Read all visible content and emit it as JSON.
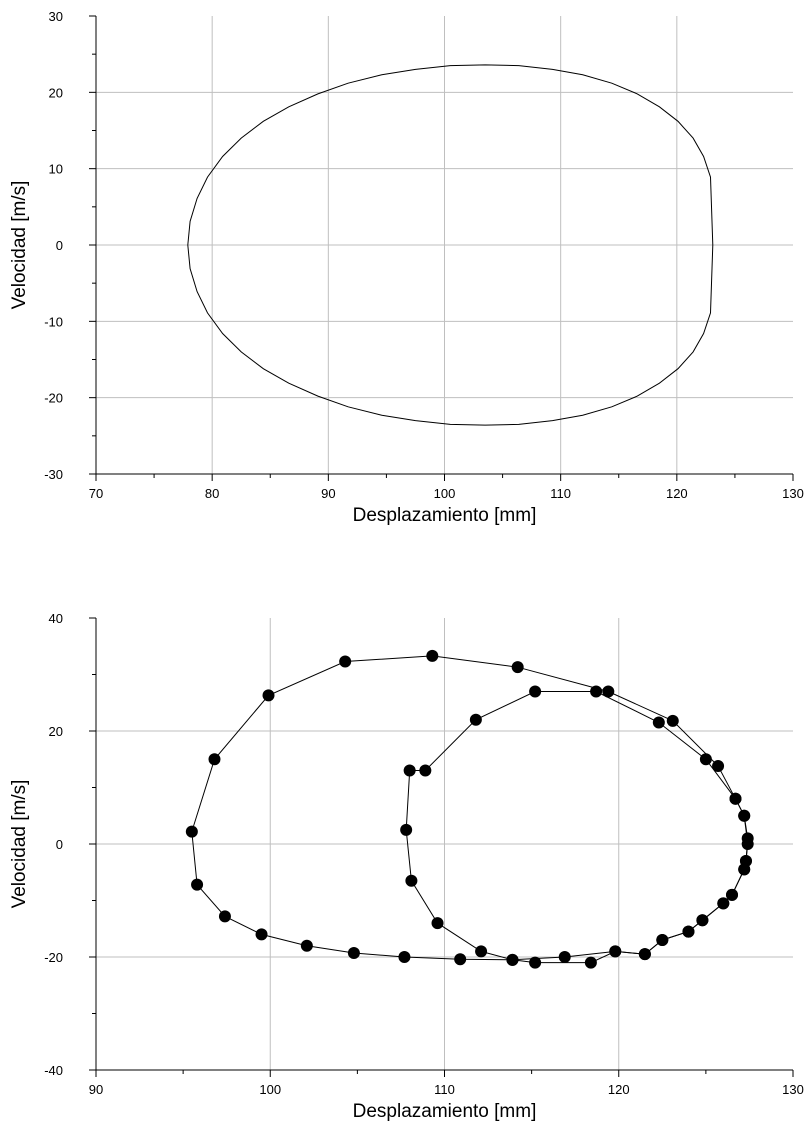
{
  "chart_data": [
    {
      "type": "line",
      "title": "",
      "xlabel": "Desplazamiento [mm]",
      "ylabel": "Velocidad [m/s]",
      "xlim": [
        70,
        130
      ],
      "ylim": [
        -30,
        30
      ],
      "xticks": [
        70,
        80,
        90,
        100,
        110,
        120,
        130
      ],
      "yticks": [
        -30,
        -20,
        -10,
        0,
        10,
        20,
        30
      ],
      "grid": true,
      "markers": false,
      "series": [
        {
          "x": [
            77.9,
            78.1,
            78.7,
            79.6,
            80.9,
            82.5,
            84.4,
            86.6,
            89.1,
            91.7,
            94.6,
            97.5,
            100.5,
            103.5,
            106.4,
            109.3,
            111.9,
            114.4,
            116.6,
            118.5,
            120.1,
            121.4,
            122.3,
            122.9,
            123.1,
            122.9,
            122.3,
            121.4,
            120.1,
            118.5,
            116.6,
            114.4,
            111.9,
            109.3,
            106.4,
            103.5,
            100.5,
            97.5,
            94.6,
            91.7,
            89.1,
            86.6,
            84.4,
            82.5,
            80.9,
            79.6,
            78.7,
            78.1,
            77.9
          ],
          "y": [
            0.0,
            3.1,
            6.1,
            8.9,
            11.6,
            14.0,
            16.2,
            18.1,
            19.8,
            21.2,
            22.3,
            23.0,
            23.5,
            23.6,
            23.5,
            23.0,
            22.3,
            21.2,
            19.8,
            18.1,
            16.2,
            14.0,
            11.6,
            8.9,
            0.0,
            -8.9,
            -11.6,
            -14.0,
            -16.2,
            -18.1,
            -19.8,
            -21.2,
            -22.3,
            -23.0,
            -23.5,
            -23.6,
            -23.5,
            -23.0,
            -22.3,
            -21.2,
            -19.8,
            -18.1,
            -16.2,
            -14.0,
            -11.6,
            -8.9,
            -6.1,
            -3.1,
            0.0
          ]
        }
      ]
    },
    {
      "type": "line",
      "title": "",
      "xlabel": "Desplazamiento [mm]",
      "ylabel": "Velocidad [m/s]",
      "xlim": [
        90,
        130
      ],
      "ylim": [
        -40,
        40
      ],
      "xticks": [
        90,
        100,
        110,
        120,
        130
      ],
      "yticks": [
        -40,
        -20,
        0,
        20,
        40
      ],
      "grid": true,
      "markers": true,
      "series": [
        {
          "x": [
            107.8,
            108.0,
            108.9,
            111.8,
            115.2,
            118.7,
            122.3,
            125.0,
            126.7,
            127.2,
            127.4,
            127.3,
            127.2,
            126.5,
            126.0,
            124.8,
            124.0,
            122.5,
            121.5,
            119.8,
            118.4,
            115.2,
            113.9,
            112.1,
            109.6,
            108.1
          ],
          "y": [
            2.5,
            13.0,
            13.0,
            22.0,
            27.0,
            27.0,
            21.5,
            15.0,
            8.0,
            5.0,
            1.0,
            -3.0,
            -4.5,
            -9.0,
            -10.5,
            -13.5,
            -15.5,
            -17.0,
            -19.5,
            -19.0,
            -21.0,
            -21.0,
            -20.5,
            -19.0,
            -14.0,
            -6.5
          ],
          "closed": true
        },
        {
          "x": [
            95.5,
            96.8,
            99.9,
            104.3,
            109.3,
            114.2,
            119.4,
            123.1,
            125.7,
            126.7,
            127.2,
            127.4,
            127.3,
            127.2,
            126.5,
            126.0,
            124.8,
            124.0,
            122.5,
            121.5,
            119.8,
            116.9,
            113.9,
            110.9,
            107.7,
            104.8,
            102.1,
            99.5,
            97.4,
            95.8,
            95.5
          ],
          "y": [
            2.2,
            15.0,
            26.3,
            32.3,
            33.3,
            31.3,
            27.0,
            21.8,
            13.8,
            8.0,
            5.0,
            0.0,
            -3.0,
            -4.5,
            -9.0,
            -10.5,
            -13.5,
            -15.5,
            -17.0,
            -19.5,
            -19.0,
            -20.0,
            -20.5,
            -20.4,
            -20.0,
            -19.3,
            -18.0,
            -16.0,
            -12.8,
            -7.2,
            2.2
          ]
        }
      ]
    }
  ]
}
